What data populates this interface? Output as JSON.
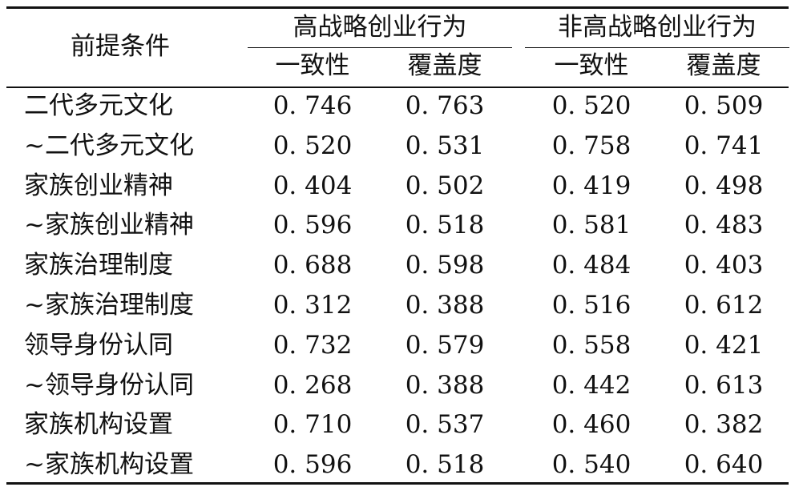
{
  "table": {
    "header": {
      "premise": "前提条件",
      "group_high": "高战略创业行为",
      "group_non": "非高战略创业行为",
      "consistency": "一致性",
      "coverage": "覆盖度"
    },
    "rows": [
      {
        "label": "二代多元文化",
        "high_consistency": "0. 746",
        "high_coverage": "0. 763",
        "non_consistency": "0. 520",
        "non_coverage": "0. 509"
      },
      {
        "label": "~二代多元文化",
        "high_consistency": "0. 520",
        "high_coverage": "0. 531",
        "non_consistency": "0. 758",
        "non_coverage": "0. 741"
      },
      {
        "label": "家族创业精神",
        "high_consistency": "0. 404",
        "high_coverage": "0. 502",
        "non_consistency": "0. 419",
        "non_coverage": "0. 498"
      },
      {
        "label": "~家族创业精神",
        "high_consistency": "0. 596",
        "high_coverage": "0. 518",
        "non_consistency": "0. 581",
        "non_coverage": "0. 483"
      },
      {
        "label": "家族治理制度",
        "high_consistency": "0. 688",
        "high_coverage": "0. 598",
        "non_consistency": "0. 484",
        "non_coverage": "0. 403"
      },
      {
        "label": "~家族治理制度",
        "high_consistency": "0. 312",
        "high_coverage": "0. 388",
        "non_consistency": "0. 516",
        "non_coverage": "0. 612"
      },
      {
        "label": "领导身份认同",
        "high_consistency": "0. 732",
        "high_coverage": "0. 579",
        "non_consistency": "0. 558",
        "non_coverage": "0. 421"
      },
      {
        "label": "~领导身份认同",
        "high_consistency": "0. 268",
        "high_coverage": "0. 388",
        "non_consistency": "0. 442",
        "non_coverage": "0. 613"
      },
      {
        "label": "家族机构设置",
        "high_consistency": "0. 710",
        "high_coverage": "0. 537",
        "non_consistency": "0. 460",
        "non_coverage": "0. 382"
      },
      {
        "label": "~家族机构设置",
        "high_consistency": "0. 596",
        "high_coverage": "0. 518",
        "non_consistency": "0. 540",
        "non_coverage": "0. 640"
      }
    ]
  }
}
